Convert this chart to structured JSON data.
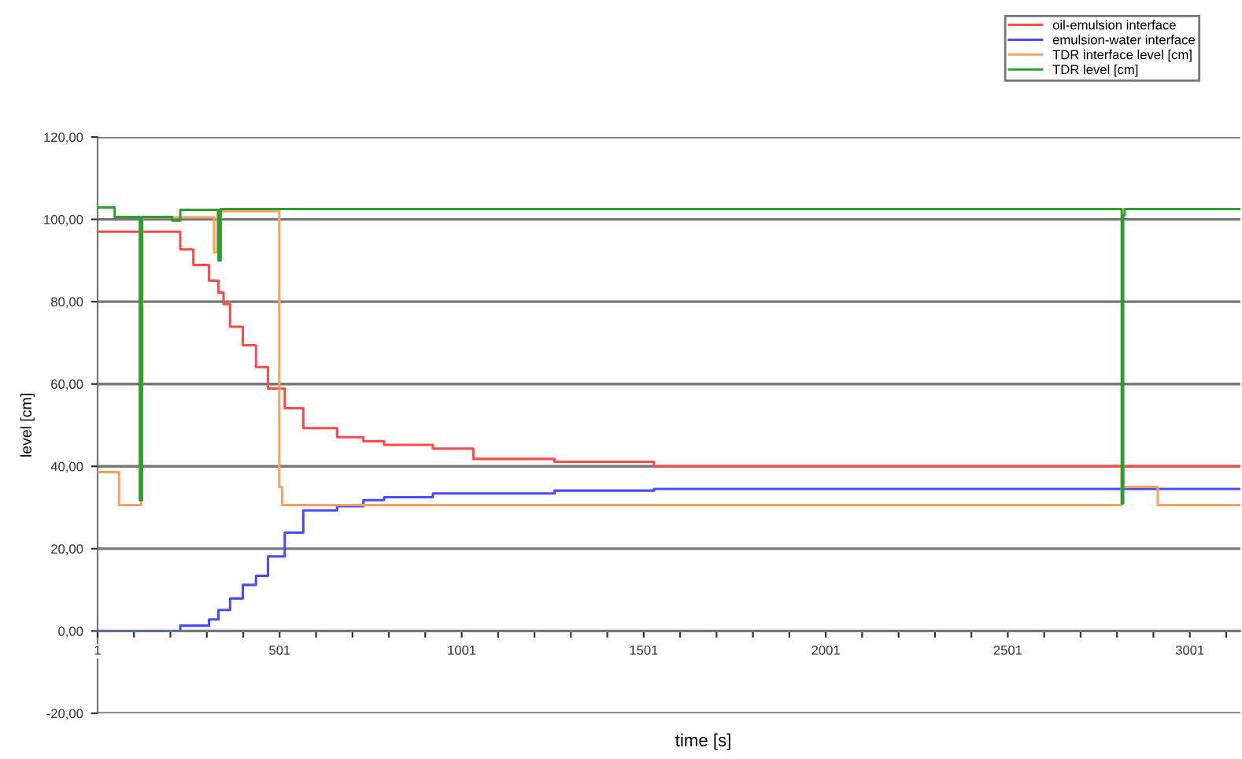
{
  "chart_data": {
    "type": "step",
    "xlabel": "time [s]",
    "ylabel": "level [cm]",
    "xlim": [
      1,
      3140
    ],
    "ylim": [
      -20,
      120
    ],
    "xticks": [
      1,
      {
        "value": 101,
        "label": null
      },
      {
        "value": 201,
        "label": null
      },
      {
        "value": 301,
        "label": null
      },
      {
        "value": 401,
        "label": null
      },
      501,
      {
        "value": 601,
        "label": null
      },
      {
        "value": 701,
        "label": null
      },
      {
        "value": 801,
        "label": null
      },
      {
        "value": 901,
        "label": null
      },
      1001,
      {
        "value": 1101,
        "label": null
      },
      {
        "value": 1201,
        "label": null
      },
      {
        "value": 1301,
        "label": null
      },
      {
        "value": 1401,
        "label": null
      },
      1501,
      {
        "value": 1601,
        "label": null
      },
      {
        "value": 1701,
        "label": null
      },
      {
        "value": 1801,
        "label": null
      },
      {
        "value": 1901,
        "label": null
      },
      2001,
      {
        "value": 2101,
        "label": null
      },
      {
        "value": 2201,
        "label": null
      },
      {
        "value": 2301,
        "label": null
      },
      {
        "value": 2401,
        "label": null
      },
      2501,
      {
        "value": 2601,
        "label": null
      },
      {
        "value": 2701,
        "label": null
      },
      {
        "value": 2801,
        "label": null
      },
      {
        "value": 2901,
        "label": null
      },
      3001,
      {
        "value": 3101,
        "label": null
      }
    ],
    "yticks": [
      {
        "value": -20,
        "label": "-20,00"
      },
      {
        "value": 0,
        "label": "0,00"
      },
      {
        "value": 20,
        "label": "20,00"
      },
      {
        "value": 40,
        "label": "40,00"
      },
      {
        "value": 60,
        "label": "60,00"
      },
      {
        "value": 80,
        "label": "80,00"
      },
      {
        "value": 100,
        "label": "100,00"
      },
      {
        "value": 120,
        "label": "120,00"
      }
    ],
    "grid": "y",
    "legend": "top right",
    "line_style": "solid",
    "marker": "none",
    "series": [
      {
        "name": "oil-emulsion interface",
        "color": "#ff4a4a",
        "x": [
          1,
          228,
          264,
          307,
          333,
          347,
          365,
          400,
          436,
          469,
          515,
          566,
          659,
          731,
          788,
          922,
          1033,
          1256,
          1529,
          3140
        ],
        "values": [
          97,
          92.7,
          88.9,
          85.1,
          82.2,
          79.4,
          73.9,
          69.4,
          64.1,
          58.9,
          54.1,
          49.3,
          47.1,
          46.1,
          45.2,
          44.3,
          41.8,
          41.1,
          40,
          40
        ]
      },
      {
        "name": "emulsion-water interface",
        "color": "#4a4aff",
        "x": [
          1,
          228,
          307,
          333,
          365,
          400,
          436,
          469,
          515,
          566,
          659,
          731,
          788,
          922,
          1256,
          1529,
          3140
        ],
        "values": [
          0,
          1.3,
          2.8,
          5.1,
          7.9,
          11.2,
          13.4,
          18.1,
          23.9,
          29.3,
          30.3,
          31.8,
          32.5,
          33.4,
          34.1,
          34.5,
          34.5
        ]
      },
      {
        "name": "TDR interface level [cm]",
        "color": "#ffa060",
        "x": [
          1,
          60,
          120,
          124,
          130,
          321,
          330,
          345,
          500,
          508,
          2814,
          2818,
          2830,
          2913,
          3140
        ],
        "values": [
          38.6,
          30.6,
          60,
          100.5,
          100.5,
          92,
          102,
          102,
          35,
          30.6,
          38.9,
          35,
          35,
          30.6,
          30.6
        ]
      },
      {
        "name": "TDR level [cm]",
        "color": "#2e9e2e",
        "x": [
          1,
          48,
          117,
          123,
          142,
          206,
          228,
          333,
          339,
          350,
          2814,
          2818,
          2822,
          2835,
          3140
        ],
        "values": [
          102.9,
          100.6,
          31.8,
          100.6,
          100.6,
          99.7,
          102.3,
          90,
          102.5,
          102.5,
          31,
          101,
          102.5,
          102.5,
          102.5
        ]
      }
    ]
  }
}
